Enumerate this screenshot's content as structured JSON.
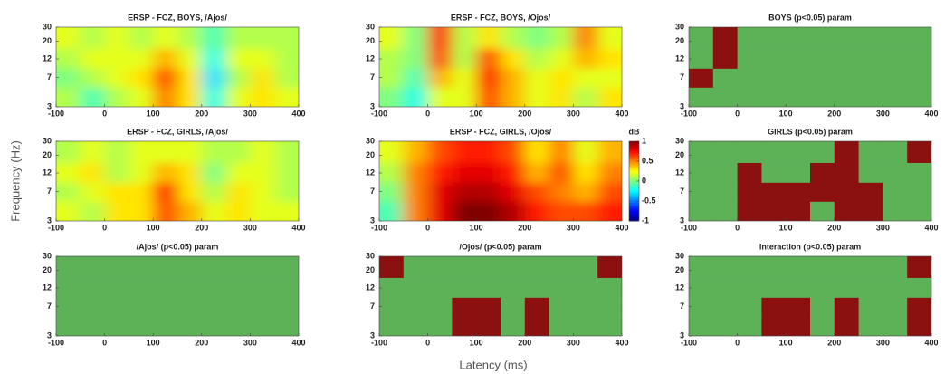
{
  "figure": {
    "ylabel": "Frequency (Hz)",
    "xlabel": "Latency (ms)"
  },
  "chart_data": [
    {
      "type": "heatmap",
      "title": "ERSP - FCZ, BOYS, /Ajos/",
      "xlim": [
        -100,
        400
      ],
      "xticks": [
        -100,
        0,
        100,
        200,
        300,
        400
      ],
      "ylim": [
        3,
        30
      ],
      "yticks": [
        3,
        7,
        12,
        20,
        30
      ],
      "ylog": true,
      "colormap": "jet",
      "zlim": [
        -1,
        1
      ],
      "x": [
        -75,
        -25,
        25,
        75,
        125,
        175,
        225,
        275,
        325,
        375
      ],
      "y": [
        4,
        7,
        12,
        22
      ],
      "z": [
        [
          0.1,
          -0.1,
          0.1,
          0.2,
          0.5,
          0.3,
          -0.2,
          0.2,
          0.3,
          0.2
        ],
        [
          0.0,
          0.1,
          0.2,
          0.3,
          0.6,
          0.3,
          -0.3,
          0.1,
          0.3,
          0.1
        ],
        [
          0.1,
          0.2,
          0.2,
          0.2,
          0.4,
          0.2,
          -0.2,
          0.2,
          0.2,
          0.1
        ],
        [
          0.2,
          0.1,
          0.2,
          0.1,
          0.2,
          0.1,
          -0.1,
          0.1,
          0.1,
          0.1
        ]
      ]
    },
    {
      "type": "heatmap",
      "title": "ERSP - FCZ, BOYS, /Ojos/",
      "xlim": [
        -100,
        400
      ],
      "xticks": [
        -100,
        0,
        100,
        200,
        300,
        400
      ],
      "ylim": [
        3,
        30
      ],
      "yticks": [
        3,
        7,
        12,
        20,
        30
      ],
      "ylog": true,
      "colormap": "jet",
      "zlim": [
        -1,
        1
      ],
      "x": [
        -75,
        -25,
        25,
        75,
        125,
        175,
        225,
        275,
        325,
        375
      ],
      "y": [
        4,
        7,
        12,
        22
      ],
      "z": [
        [
          0.0,
          -0.2,
          0.2,
          0.2,
          0.6,
          0.4,
          0.2,
          0.3,
          0.1,
          0.3
        ],
        [
          0.1,
          -0.1,
          0.4,
          0.2,
          0.7,
          0.4,
          0.2,
          0.3,
          0.2,
          0.2
        ],
        [
          0.1,
          0.0,
          0.6,
          0.1,
          0.6,
          0.3,
          0.1,
          0.2,
          0.4,
          0.3
        ],
        [
          0.2,
          0.0,
          0.7,
          0.1,
          0.3,
          0.1,
          0.0,
          0.1,
          0.5,
          0.2
        ]
      ]
    },
    {
      "type": "heatmap",
      "title": "BOYS (p<0.05) param",
      "xlim": [
        -100,
        400
      ],
      "xticks": [
        -100,
        0,
        100,
        200,
        300,
        400
      ],
      "ylim": [
        3,
        30
      ],
      "yticks": [
        3,
        7,
        12,
        20,
        30
      ],
      "ylog": true,
      "colormap": [
        "#5db157",
        "#8b1010"
      ],
      "zlim": [
        0,
        1
      ],
      "x": [
        -75,
        -25,
        25,
        75,
        125,
        175,
        225,
        275,
        325,
        375
      ],
      "y": [
        4,
        7,
        12,
        22
      ],
      "z": [
        [
          0,
          0,
          0,
          0,
          0,
          0,
          0,
          0,
          0,
          0
        ],
        [
          1,
          0,
          0,
          0,
          0,
          0,
          0,
          0,
          0,
          0
        ],
        [
          0,
          1,
          0,
          0,
          0,
          0,
          0,
          0,
          0,
          0
        ],
        [
          0,
          1,
          0,
          0,
          0,
          0,
          0,
          0,
          0,
          0
        ]
      ]
    },
    {
      "type": "heatmap",
      "title": "ERSP - FCZ, GIRLS, /Ajos/",
      "xlim": [
        -100,
        400
      ],
      "xticks": [
        -100,
        0,
        100,
        200,
        300,
        400
      ],
      "ylim": [
        3,
        30
      ],
      "yticks": [
        3,
        7,
        12,
        20,
        30
      ],
      "ylog": true,
      "colormap": "jet",
      "zlim": [
        -1,
        1
      ],
      "x": [
        -75,
        -25,
        25,
        75,
        125,
        175,
        225,
        275,
        325,
        375
      ],
      "y": [
        4,
        7,
        12,
        22
      ],
      "z": [
        [
          0.2,
          0.1,
          0.3,
          0.3,
          0.6,
          0.4,
          0.2,
          0.3,
          0.2,
          0.2
        ],
        [
          0.1,
          0.2,
          0.3,
          0.3,
          0.7,
          0.3,
          0.1,
          0.3,
          0.2,
          0.1
        ],
        [
          0.2,
          0.3,
          0.1,
          0.2,
          0.4,
          0.3,
          0.0,
          0.2,
          0.2,
          0.1
        ],
        [
          0.1,
          0.2,
          0.1,
          0.2,
          0.2,
          0.2,
          0.1,
          0.1,
          0.2,
          0.1
        ]
      ]
    },
    {
      "type": "heatmap",
      "title": "ERSP - FCZ, GIRLS, /Ojos/",
      "xlim": [
        -100,
        400
      ],
      "xticks": [
        -100,
        0,
        100,
        200,
        300,
        400
      ],
      "ylim": [
        3,
        30
      ],
      "yticks": [
        3,
        7,
        12,
        20,
        30
      ],
      "ylog": true,
      "colormap": "jet",
      "zlim": [
        -1,
        1
      ],
      "x": [
        -75,
        -25,
        25,
        75,
        125,
        175,
        225,
        275,
        325,
        375
      ],
      "y": [
        4,
        7,
        12,
        22
      ],
      "z": [
        [
          -0.1,
          0.5,
          0.8,
          1.0,
          1.0,
          0.9,
          0.7,
          0.6,
          0.6,
          0.7
        ],
        [
          0.0,
          0.5,
          0.8,
          0.9,
          0.9,
          0.8,
          0.6,
          0.5,
          0.4,
          0.6
        ],
        [
          0.1,
          0.5,
          0.7,
          0.8,
          0.8,
          0.7,
          0.4,
          0.6,
          0.3,
          0.5
        ],
        [
          0.2,
          0.4,
          0.6,
          0.7,
          0.7,
          0.6,
          0.3,
          0.5,
          0.2,
          0.4
        ]
      ],
      "colorbar": {
        "label": "dB",
        "ticks": [
          -1,
          -0.5,
          0,
          0.5,
          1
        ]
      }
    },
    {
      "type": "heatmap",
      "title": "GIRLS (p<0.05) param",
      "xlim": [
        -100,
        400
      ],
      "xticks": [
        -100,
        0,
        100,
        200,
        300,
        400
      ],
      "ylim": [
        3,
        30
      ],
      "yticks": [
        3,
        7,
        12,
        20,
        30
      ],
      "ylog": true,
      "colormap": [
        "#5db157",
        "#8b1010"
      ],
      "zlim": [
        0,
        1
      ],
      "x": [
        -75,
        -25,
        25,
        75,
        125,
        175,
        225,
        275,
        325,
        375
      ],
      "y": [
        4,
        7,
        12,
        22
      ],
      "z": [
        [
          0,
          0,
          1,
          1,
          1,
          0,
          1,
          1,
          0,
          0
        ],
        [
          0,
          0,
          1,
          1,
          1,
          1,
          1,
          1,
          0,
          0
        ],
        [
          0,
          0,
          1,
          0,
          0,
          1,
          1,
          0,
          0,
          0
        ],
        [
          0,
          0,
          0,
          0,
          0,
          0,
          1,
          0,
          0,
          1
        ]
      ]
    },
    {
      "type": "heatmap",
      "title": "/Ajos/ (p<0.05) param",
      "xlim": [
        -100,
        400
      ],
      "xticks": [
        -100,
        0,
        100,
        200,
        300,
        400
      ],
      "ylim": [
        3,
        30
      ],
      "yticks": [
        3,
        7,
        12,
        20,
        30
      ],
      "ylog": true,
      "colormap": [
        "#5db157",
        "#8b1010"
      ],
      "zlim": [
        0,
        1
      ],
      "x": [
        -75,
        -25,
        25,
        75,
        125,
        175,
        225,
        275,
        325,
        375
      ],
      "y": [
        4,
        7,
        12,
        22
      ],
      "z": [
        [
          0,
          0,
          0,
          0,
          0,
          0,
          0,
          0,
          0,
          0
        ],
        [
          0,
          0,
          0,
          0,
          0,
          0,
          0,
          0,
          0,
          0
        ],
        [
          0,
          0,
          0,
          0,
          0,
          0,
          0,
          0,
          0,
          0
        ],
        [
          0,
          0,
          0,
          0,
          0,
          0,
          0,
          0,
          0,
          0
        ]
      ]
    },
    {
      "type": "heatmap",
      "title": "/Ojos/ (p<0.05) param",
      "xlim": [
        -100,
        400
      ],
      "xticks": [
        -100,
        0,
        100,
        200,
        300,
        400
      ],
      "ylim": [
        3,
        30
      ],
      "yticks": [
        3,
        7,
        12,
        20,
        30
      ],
      "ylog": true,
      "colormap": [
        "#5db157",
        "#8b1010"
      ],
      "zlim": [
        0,
        1
      ],
      "x": [
        -75,
        -25,
        25,
        75,
        125,
        175,
        225,
        275,
        325,
        375
      ],
      "y": [
        4,
        7,
        12,
        22
      ],
      "z": [
        [
          0,
          0,
          0,
          1,
          1,
          0,
          1,
          0,
          0,
          0
        ],
        [
          0,
          0,
          0,
          1,
          1,
          0,
          1,
          0,
          0,
          0
        ],
        [
          0,
          0,
          0,
          0,
          0,
          0,
          0,
          0,
          0,
          0
        ],
        [
          1,
          0,
          0,
          0,
          0,
          0,
          0,
          0,
          0,
          1
        ]
      ]
    },
    {
      "type": "heatmap",
      "title": "Interaction (p<0.05) param",
      "xlim": [
        -100,
        400
      ],
      "xticks": [
        -100,
        0,
        100,
        200,
        300,
        400
      ],
      "ylim": [
        3,
        30
      ],
      "yticks": [
        3,
        7,
        12,
        20,
        30
      ],
      "ylog": true,
      "colormap": [
        "#5db157",
        "#8b1010"
      ],
      "zlim": [
        0,
        1
      ],
      "x": [
        -75,
        -25,
        25,
        75,
        125,
        175,
        225,
        275,
        325,
        375
      ],
      "y": [
        4,
        7,
        12,
        22
      ],
      "z": [
        [
          0,
          0,
          0,
          1,
          1,
          0,
          1,
          0,
          0,
          1
        ],
        [
          0,
          0,
          0,
          1,
          1,
          0,
          1,
          0,
          0,
          1
        ],
        [
          0,
          0,
          0,
          0,
          0,
          0,
          0,
          0,
          0,
          0
        ],
        [
          0,
          0,
          0,
          0,
          0,
          0,
          0,
          0,
          0,
          1
        ]
      ]
    }
  ]
}
